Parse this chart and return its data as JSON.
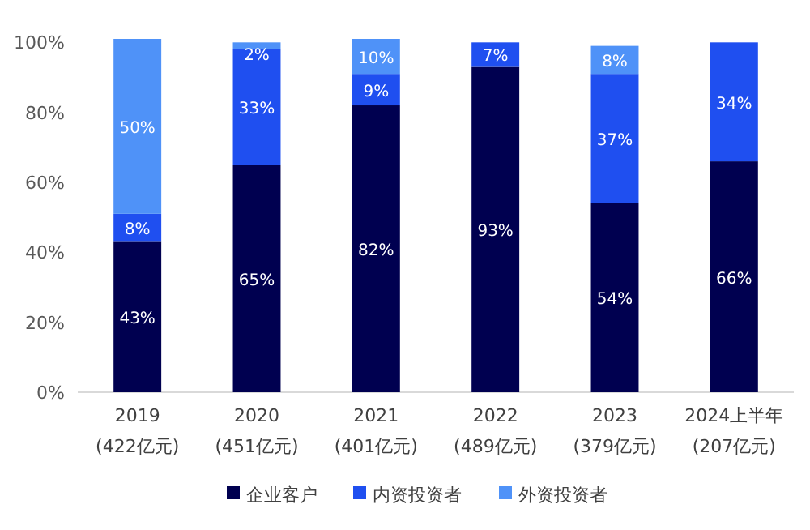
{
  "chart_data": {
    "type": "bar",
    "stacked": true,
    "categories": [
      "2019\n(422亿元)",
      "2020\n(451亿元)",
      "2021\n(401亿元)",
      "2022\n(489亿元)",
      "2023\n(379亿元)",
      "2024上半年\n(207亿元)"
    ],
    "series": [
      {
        "name": "企业客户",
        "color": "#000050",
        "values": [
          43,
          65,
          82,
          93,
          54,
          66
        ],
        "value_labels": [
          "43%",
          "65%",
          "82%",
          "93%",
          "54%",
          "66%"
        ]
      },
      {
        "name": "内资投资者",
        "color": "#1f4ff0",
        "values": [
          8,
          33,
          9,
          7,
          37,
          34
        ],
        "value_labels": [
          "8%",
          "33%",
          "9%",
          "7%",
          "37%",
          "34%"
        ]
      },
      {
        "name": "外资投资者",
        "color": "#4f92f8",
        "values": [
          50,
          2,
          10,
          null,
          8,
          null
        ],
        "value_labels": [
          "50%",
          "2%",
          "10%",
          null,
          "8%",
          null
        ]
      }
    ],
    "ylim": [
      0,
      101
    ],
    "yticks": [
      {
        "value": 0,
        "label": "0%"
      },
      {
        "value": 20,
        "label": "20%"
      },
      {
        "value": 40,
        "label": "40%"
      },
      {
        "value": 60,
        "label": "60%"
      },
      {
        "value": 80,
        "label": "80%"
      },
      {
        "value": 100,
        "label": "100%"
      }
    ],
    "legend": "bottom",
    "grid": false
  }
}
